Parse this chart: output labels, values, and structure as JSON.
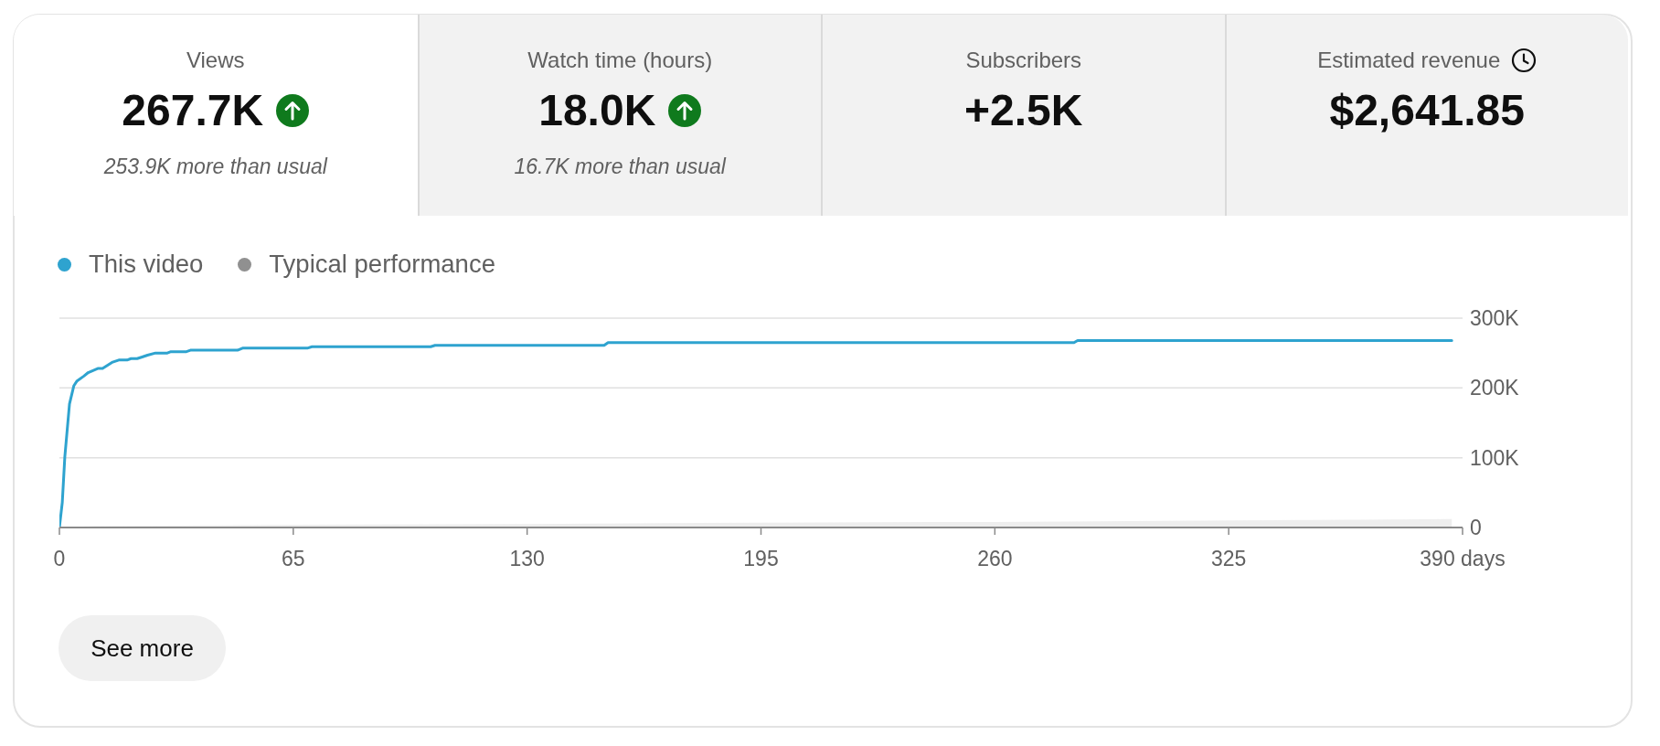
{
  "chart_data": [
    {
      "type": "other",
      "categories": [
        "Views",
        "Watch time (hours)",
        "Subscribers",
        "Estimated revenue"
      ],
      "value_labels": [
        "267.7K",
        "18.0K",
        "+2.5K",
        "$2,641.85"
      ],
      "annotations": [
        "253.9K more than usual",
        "16.7K more than usual"
      ]
    },
    {
      "type": "line",
      "legend": "top left",
      "grid": "y",
      "xlim": [
        0,
        390
      ],
      "xticks": [
        0,
        65,
        130,
        195,
        260,
        325,
        {
          "value": 390,
          "label": "390 days"
        }
      ],
      "ylim": [
        0,
        300000
      ],
      "yticks": [
        0,
        {
          "value": 100000,
          "label": "100K"
        },
        {
          "value": 200000,
          "label": "200K"
        },
        {
          "value": 300000,
          "label": "300K"
        }
      ],
      "series": [
        {
          "name": "This video",
          "color": "#2ea3cf",
          "x": [
            0,
            0.8,
            1.5,
            2.8,
            4,
            4.9,
            6.8,
            8,
            10.8,
            12,
            14.8,
            16.5,
            18.8,
            19.9,
            21.6,
            22.8,
            24.5,
            26.7,
            30,
            31,
            35.3,
            36.4,
            49.5,
            50.9,
            68.9,
            70.2,
            103.2,
            104.4,
            151.4,
            152.5,
            282,
            283,
            387
          ],
          "values": [
            0,
            36000,
            101000,
            177000,
            203000,
            210000,
            217000,
            222000,
            228000,
            228000,
            237000,
            240000,
            240000,
            242000,
            242000,
            244000,
            247000,
            250000,
            250000,
            252000,
            252000,
            254000,
            254000,
            257000,
            257000,
            259000,
            259000,
            261000,
            261000,
            265000,
            265000,
            268000,
            268000
          ]
        },
        {
          "name": "Typical performance",
          "type": "area",
          "color": "#909090",
          "x": [
            0,
            10,
            65,
            130,
            195,
            260,
            325,
            387
          ],
          "values": [
            0,
            2000,
            4000,
            5000,
            7000,
            8000,
            10000,
            12000
          ]
        }
      ],
      "annotations": [
        "See more"
      ]
    }
  ]
}
